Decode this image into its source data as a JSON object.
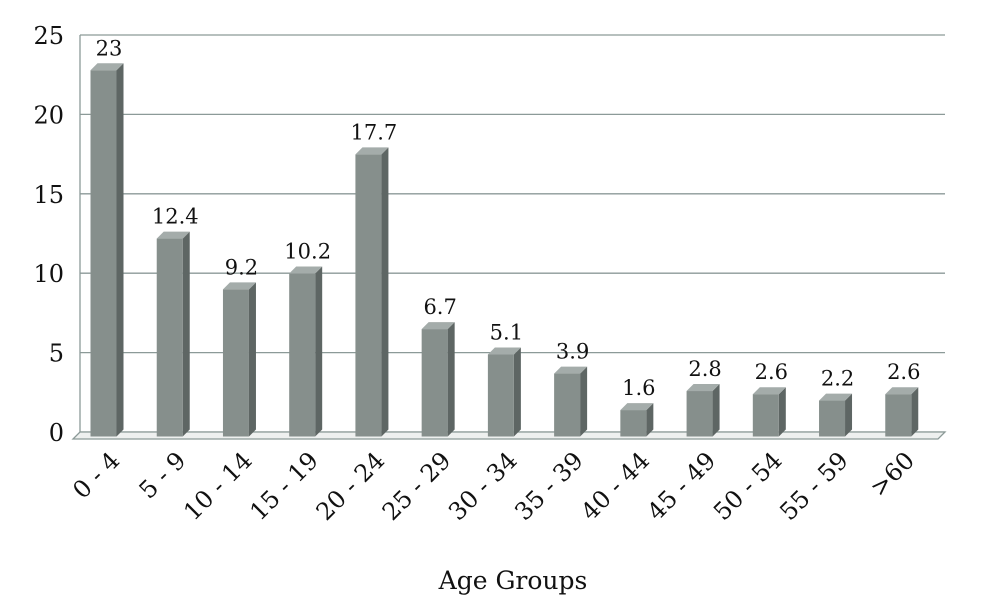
{
  "chart_data": {
    "type": "bar",
    "title": "",
    "xlabel": "Age Groups",
    "ylabel": "",
    "categories": [
      "0 - 4",
      "5 - 9",
      "10 - 14",
      "15 - 19",
      "20 - 24",
      "25 - 29",
      "30 - 34",
      "35 - 39",
      "40 - 44",
      "45 - 49",
      "50 - 54",
      "55 - 59",
      ">60"
    ],
    "values": [
      23,
      12.4,
      9.2,
      10.2,
      17.7,
      6.7,
      5.1,
      3.9,
      1.6,
      2.8,
      2.6,
      2.2,
      2.6
    ],
    "data_labels": [
      "23",
      "12.4",
      "9.2",
      "10.2",
      "17.7",
      "6.7",
      "5.1",
      "3.9",
      "1.6",
      "2.8",
      "2.6",
      "2.2",
      "2.6"
    ],
    "ylim": [
      0,
      25
    ],
    "yticks": [
      "0",
      "5",
      "10",
      "15",
      "20",
      "25"
    ],
    "grid": true,
    "legend": "none",
    "colors": {
      "bar_front": "#868f8c",
      "bar_side": "#5e6664",
      "bar_top": "#a4acaa",
      "grid": "#8c9a98",
      "floor": "#eef0ef"
    }
  }
}
